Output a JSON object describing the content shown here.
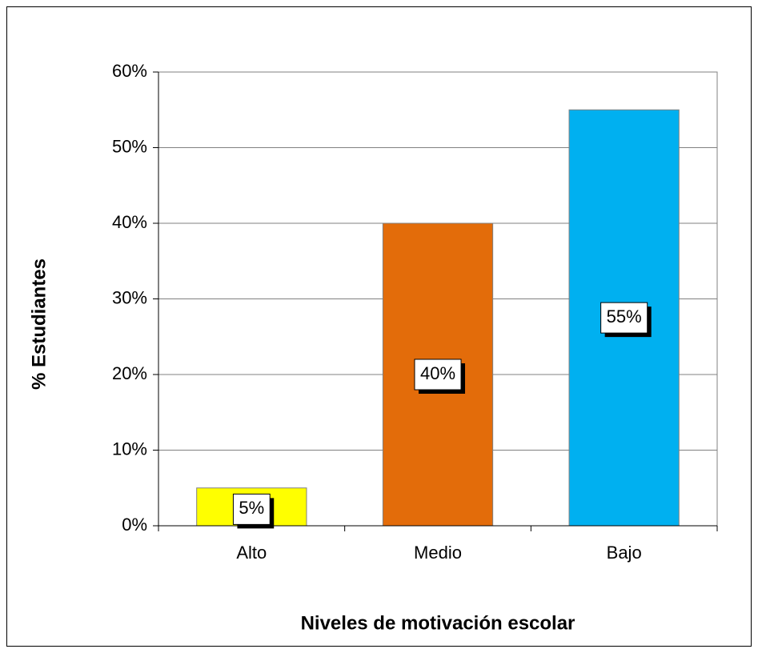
{
  "chart_data": {
    "type": "bar",
    "categories": [
      "Alto",
      "Medio",
      "Bajo"
    ],
    "values": [
      5,
      40,
      55
    ],
    "value_labels": [
      "5%",
      "40%",
      "55%"
    ],
    "colors": [
      "#ffff00",
      "#e36c0a",
      "#00b0f0"
    ],
    "ylim": [
      0,
      60
    ],
    "yticks": [
      {
        "value": 0,
        "label": "0%"
      },
      {
        "value": 10,
        "label": "10%"
      },
      {
        "value": 20,
        "label": "20%"
      },
      {
        "value": 30,
        "label": "30%"
      },
      {
        "value": 40,
        "label": "40%"
      },
      {
        "value": 50,
        "label": "50%"
      },
      {
        "value": 60,
        "label": "60%"
      }
    ],
    "grid": true,
    "xlabel": "Niveles de motivación escolar",
    "ylabel": "% Estudiantes"
  }
}
